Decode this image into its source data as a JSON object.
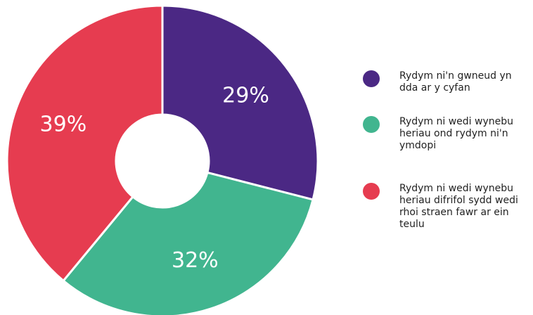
{
  "chart_data": {
    "type": "donut",
    "categories": [
      "Rydym ni'n gwneud yn dda ar y cyfan",
      "Rydym ni wedi wynebu heriau ond rydym ni'n ymdopi",
      "Rydym ni wedi wynebu heriau difrifol sydd wedi rhoi straen fawr ar ein teulu"
    ],
    "values": [
      29,
      32,
      39
    ],
    "value_labels": [
      "29%",
      "32%",
      "39%"
    ],
    "colors": [
      "#4b2884",
      "#41b58f",
      "#e63c50"
    ]
  }
}
